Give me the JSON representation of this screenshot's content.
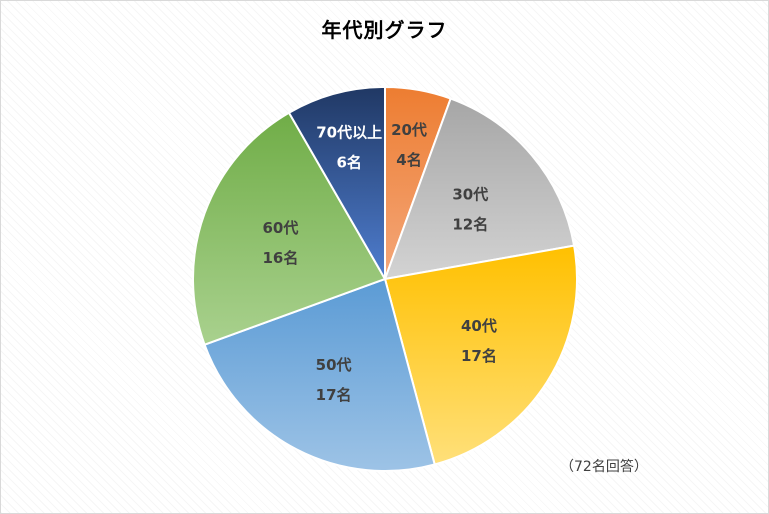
{
  "chart_data": {
    "type": "pie",
    "title": "年代別グラフ",
    "note": "（72名回答）",
    "count_suffix": "名",
    "slices": [
      {
        "label": "20代",
        "count_text": "4名",
        "value": 4,
        "colors": [
          "#f4a77a",
          "#ed7d31"
        ],
        "label_color": "dark"
      },
      {
        "label": "30代",
        "count_text": "12名",
        "value": 12,
        "colors": [
          "#d3d3d3",
          "#a6a6a6"
        ],
        "label_color": "dark"
      },
      {
        "label": "40代",
        "count_text": "17名",
        "value": 17,
        "colors": [
          "#ffe07a",
          "#ffc000"
        ],
        "label_color": "dark"
      },
      {
        "label": "50代",
        "count_text": "17名",
        "value": 17,
        "colors": [
          "#9dc3e6",
          "#5b9bd5"
        ],
        "label_color": "dark"
      },
      {
        "label": "60代",
        "count_text": "16名",
        "value": 16,
        "colors": [
          "#a9d18e",
          "#70ad47"
        ],
        "label_color": "dark"
      },
      {
        "label": "70代以上",
        "count_text": "6名",
        "value": 6,
        "colors": [
          "#4f7ed0",
          "#203864"
        ],
        "label_color": "light"
      }
    ]
  }
}
